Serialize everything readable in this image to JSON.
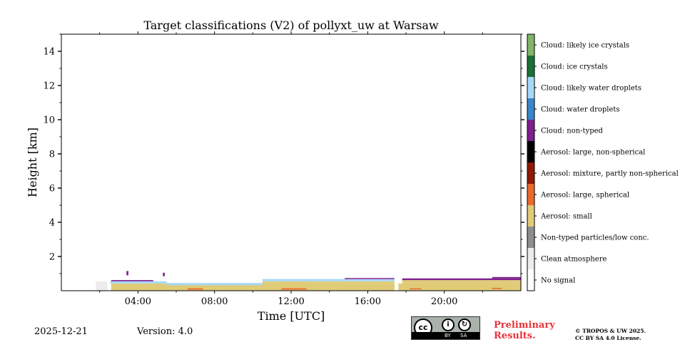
{
  "chart_data": {
    "type": "heatmap",
    "title": "Target classifications (V2) of pollyxt_uw at Warsaw",
    "xlabel": "Time [UTC]",
    "ylabel": "Height [km]",
    "xlim": [
      0,
      24
    ],
    "ylim": [
      0,
      15
    ],
    "x_ticks": [
      {
        "value": 4,
        "label": "04:00"
      },
      {
        "value": 8,
        "label": "08:00"
      },
      {
        "value": 12,
        "label": "12:00"
      },
      {
        "value": 16,
        "label": "16:00"
      },
      {
        "value": 20,
        "label": "20:00"
      }
    ],
    "y_ticks": [
      {
        "value": 2,
        "label": "2"
      },
      {
        "value": 4,
        "label": "4"
      },
      {
        "value": 6,
        "label": "6"
      },
      {
        "value": 8,
        "label": "8"
      },
      {
        "value": 10,
        "label": "10"
      },
      {
        "value": 12,
        "label": "12"
      },
      {
        "value": 14,
        "label": "14"
      }
    ],
    "classes": [
      {
        "label": "No signal",
        "color": "#ffffff"
      },
      {
        "label": "Clean atmosphere",
        "color": "#ececec"
      },
      {
        "label": "Non-typed particles/low conc.",
        "color": "#8e8e8e"
      },
      {
        "label": "Aerosol: small",
        "color": "#e0cb78"
      },
      {
        "label": "Aerosol: large, spherical",
        "color": "#ea6a2c"
      },
      {
        "label": "Aerosol: mixture, partly non-spherical",
        "color": "#8b1a06"
      },
      {
        "label": "Aerosol: large, non-spherical",
        "color": "#000000"
      },
      {
        "label": "Cloud: non-typed",
        "color": "#7d1f8d"
      },
      {
        "label": "Cloud: water droplets",
        "color": "#3a86c8"
      },
      {
        "label": "Cloud: likely water droplets",
        "color": "#a8d8f8"
      },
      {
        "label": "Cloud: ice crystals",
        "color": "#1b7035"
      },
      {
        "label": "Cloud: likely ice crystals",
        "color": "#82b56a"
      }
    ],
    "layers": [
      {
        "class": "Aerosol: small",
        "x0": 2.6,
        "x1": 24.0,
        "y0": 0.02,
        "y1": 0.42
      },
      {
        "class": "Aerosol: small",
        "x0": 10.5,
        "x1": 17.4,
        "y0": 0.42,
        "y1": 0.55
      },
      {
        "class": "Aerosol: small",
        "x0": 17.8,
        "x1": 24.0,
        "y0": 0.42,
        "y1": 0.62
      },
      {
        "class": "Cloud: likely water droplets",
        "x0": 2.4,
        "x1": 5.5,
        "y0": 0.42,
        "y1": 0.55
      },
      {
        "class": "Cloud: likely water droplets",
        "x0": 5.5,
        "x1": 10.5,
        "y0": 0.32,
        "y1": 0.45
      },
      {
        "class": "Cloud: likely water droplets",
        "x0": 10.5,
        "x1": 17.4,
        "y0": 0.55,
        "y1": 0.68
      },
      {
        "class": "Cloud: non-typed",
        "x0": 2.6,
        "x1": 4.8,
        "y0": 0.55,
        "y1": 0.62
      },
      {
        "class": "Cloud: non-typed",
        "x0": 14.8,
        "x1": 17.4,
        "y0": 0.68,
        "y1": 0.74
      },
      {
        "class": "Cloud: non-typed",
        "x0": 17.8,
        "x1": 24.0,
        "y0": 0.62,
        "y1": 0.72
      },
      {
        "class": "Cloud: non-typed",
        "x0": 22.5,
        "x1": 24.0,
        "y0": 0.72,
        "y1": 0.8
      },
      {
        "class": "Cloud: non-typed",
        "x0": 3.4,
        "x1": 3.5,
        "y0": 0.9,
        "y1": 1.15
      },
      {
        "class": "Cloud: non-typed",
        "x0": 5.3,
        "x1": 5.4,
        "y0": 0.85,
        "y1": 1.05
      },
      {
        "class": "Aerosol: large, spherical",
        "x0": 6.6,
        "x1": 7.4,
        "y0": 0.06,
        "y1": 0.14
      },
      {
        "class": "Aerosol: large, spherical",
        "x0": 11.5,
        "x1": 12.8,
        "y0": 0.06,
        "y1": 0.14
      },
      {
        "class": "Aerosol: large, spherical",
        "x0": 18.2,
        "x1": 18.8,
        "y0": 0.08,
        "y1": 0.14
      },
      {
        "class": "Aerosol: large, spherical",
        "x0": 22.5,
        "x1": 23.0,
        "y0": 0.1,
        "y1": 0.16
      },
      {
        "class": "Clean atmosphere",
        "x0": 1.8,
        "x1": 2.4,
        "y0": 0.02,
        "y1": 0.55
      },
      {
        "class": "No signal",
        "x0": 17.4,
        "x1": 17.6,
        "y0": 0.0,
        "y1": 1.3
      },
      {
        "class": "No signal",
        "x0": 2.4,
        "x1": 2.55,
        "y0": 0.0,
        "y1": 0.7
      }
    ]
  },
  "footer": {
    "date": "2025-12-21",
    "version": "Version: 4.0",
    "preliminary_line1": "Preliminary",
    "preliminary_line2": "Results.",
    "copyright_line1": "© TROPOS & UW 2025.",
    "copyright_line2": "CC BY SA 4.0 License.",
    "license_badge": {
      "cc": "cc",
      "by": "BY",
      "sa": "SA"
    }
  }
}
